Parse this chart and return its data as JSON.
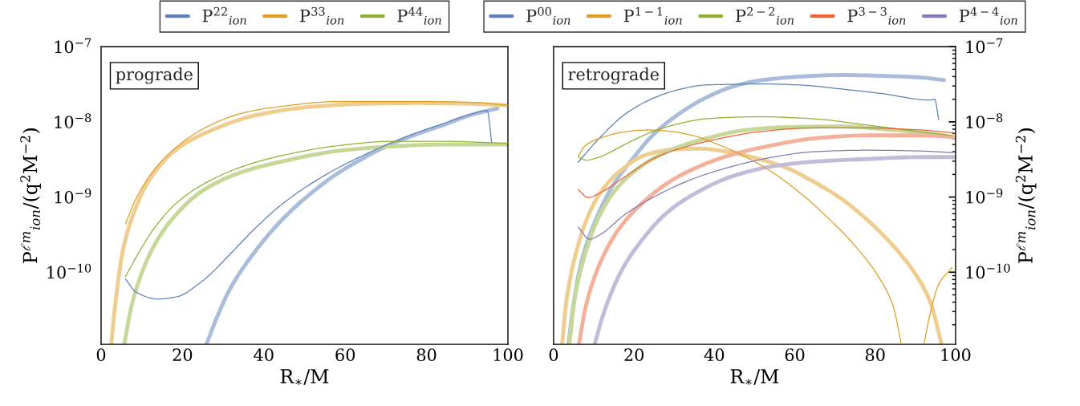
{
  "chart_data": [
    {
      "type": "line",
      "xlabel": "R$_{∗}$/M",
      "ylabel": "P$^{ℓm}$$_{ion}$/(q$^{2}$M$^{−2}$)",
      "log": "y",
      "legend": "top",
      "annotations": [
        "prograde"
      ],
      "xlim": [
        0,
        100
      ],
      "xticks": [
        0,
        20,
        40,
        60,
        80,
        100
      ],
      "ylim": [
        1.1e-11,
        1e-07
      ],
      "yticks": [
        {
          "value": 1e-10,
          "label": "10$^{−10}$"
        },
        {
          "value": 1e-09,
          "label": "10$^{−9}$"
        },
        {
          "value": 1e-08,
          "label": "10$^{−8}$"
        },
        {
          "value": 1e-07,
          "label": "10$^{−7}$"
        }
      ],
      "series": [
        {
          "name": "P$^{22}$$_{ion}$",
          "color": "#5e81b5",
          "x": [
            6,
            8.7,
            13.9,
            18.5,
            25.1,
            31.7,
            38.2,
            44.8,
            51.4,
            58,
            64.5,
            71.1,
            77.7,
            84.2,
            90.8,
            94.9,
            96
          ],
          "values": [
            8.1e-11,
            5.4e-11,
            4.4e-11,
            4.7e-11,
            7.8e-11,
            1.74e-10,
            4e-10,
            8.3e-10,
            1.48e-09,
            2.4e-09,
            3.6e-09,
            5.2e-09,
            7.2e-09,
            9.5e-09,
            1.26e-08,
            1.41e-08,
            5.4e-09
          ]
        },
        {
          "name": "P$^{33}$$_{ion}$",
          "color": "#e19c24",
          "x": [
            6,
            8.7,
            13.3,
            18.5,
            25.1,
            35,
            44.8,
            58,
            77.7,
            91,
            100
          ],
          "values": [
            4.4e-10,
            9.8e-10,
            2.4e-09,
            4.6e-09,
            8.1e-09,
            1.32e-08,
            1.62e-08,
            1.86e-08,
            1.86e-08,
            1.82e-08,
            1.66e-08
          ]
        },
        {
          "name": "P$^{44}$$_{ion}$",
          "color": "#8fb032",
          "x": [
            6,
            8.7,
            13.3,
            18.5,
            25.1,
            35,
            44.8,
            58,
            71.1,
            84.2,
            100
          ],
          "values": [
            8.7e-11,
            1.62e-10,
            4e-10,
            8.3e-10,
            1.48e-09,
            2.57e-09,
            3.6e-09,
            4.8e-09,
            5.5e-09,
            5.5e-09,
            5.2e-09
          ]
        },
        {
          "color": "#a9bdda",
          "x": [
            25.9,
            28.4,
            31.7,
            38.2,
            44.8,
            51.4,
            58,
            64.5,
            71.1,
            77.7,
            84.2,
            90.8,
            97.4
          ],
          "values": [
            1.1e-11,
            2.45e-11,
            6e-11,
            2e-10,
            5.2e-10,
            1.1e-09,
            2.04e-09,
            3.3e-09,
            5e-09,
            6.9e-09,
            9.1e-09,
            1.23e-08,
            1.51e-08
          ]
        },
        {
          "color": "#efcd8f",
          "x": [
            2.5,
            3.4,
            5.4,
            8.7,
            12,
            18.5,
            25.1,
            38.2,
            51.4,
            64.5,
            77.7,
            90.8,
            100
          ],
          "values": [
            1.1e-11,
            3.4e-11,
            2e-10,
            7.6e-10,
            1.74e-09,
            4.3e-09,
            6.9e-09,
            1.23e-08,
            1.58e-08,
            1.74e-08,
            1.78e-08,
            1.74e-08,
            1.66e-08
          ]
        },
        {
          "color": "#c6d898",
          "x": [
            5.7,
            7.4,
            10,
            13.3,
            18.5,
            25.1,
            35,
            44.8,
            58,
            71.1,
            84.2,
            100
          ],
          "values": [
            1.1e-11,
            3.4e-11,
            9.8e-11,
            2.4e-10,
            5.9e-10,
            1.23e-09,
            2.19e-09,
            3e-09,
            4.1e-09,
            4.7e-09,
            5e-09,
            5e-09
          ]
        }
      ]
    },
    {
      "type": "line",
      "xlabel": "R$_{∗}$/M",
      "y2label": "P$^{ℓm}$$_{ion}$/(q$^{2}$M$^{−2}$)",
      "log": "y2",
      "legend": "top",
      "annotations": [
        "retrograde"
      ],
      "xlim": [
        0,
        100
      ],
      "xticks": [
        0,
        20,
        40,
        60,
        80,
        100
      ],
      "y2lim": [
        1.1e-11,
        1e-07
      ],
      "y2ticks": [
        {
          "value": 1e-10,
          "label": "10$^{−10}$"
        },
        {
          "value": 1e-09,
          "label": "10$^{−9}$"
        },
        {
          "value": 1e-08,
          "label": "10$^{−8}$"
        },
        {
          "value": 1e-07,
          "label": "10$^{−7}$"
        }
      ],
      "series": [
        {
          "name": "P$^{00}$$_{ion}$",
          "color": "#5e81b5",
          "axis": "y2",
          "x": [
            6.1,
            11.3,
            18,
            24.6,
            31.3,
            37.9,
            44.6,
            51.2,
            61.2,
            71.2,
            81.2,
            93.8,
            94.8,
            95.8
          ],
          "values": [
            2.9e-09,
            6e-09,
            1.29e-08,
            2.04e-08,
            2.7e-08,
            3.1e-08,
            3.16e-08,
            3.2e-08,
            3.1e-08,
            2.75e-08,
            2.4e-08,
            1.95e-08,
            2e-08,
            1.07e-08
          ]
        },
        {
          "name": "P$^{1−1}$$_{ion}$",
          "color": "#e19c24",
          "axis": "y2",
          "x": [
            6.1,
            8,
            11.3,
            18,
            23.3,
            27.9,
            34.6,
            41.3,
            47.9,
            54.6,
            61.2,
            67.9,
            74.5,
            81.2,
            84.5,
            86.5,
            89,
            92.1,
            93.8,
            95.8,
            99.1
          ],
          "values": [
            3.5e-09,
            4.9e-09,
            6e-09,
            7.4e-09,
            7.8e-09,
            7.6e-09,
            6.6e-09,
            4.9e-09,
            3.4e-09,
            2.1e-09,
            1.15e-09,
            5.5e-10,
            2.4e-10,
            8.1e-11,
            3.5e-11,
            1.1e-11,
            null,
            1.1e-11,
            3e-11,
            6.9e-11,
            1.15e-10
          ]
        },
        {
          "name": "P$^{2−2}$$_{ion}$",
          "color": "#8fb032",
          "axis": "y2",
          "x": [
            6.1,
            8.3,
            11.3,
            18,
            24.6,
            31.3,
            37.9,
            51.2,
            64.5,
            77.8,
            91.1,
            99.1
          ],
          "values": [
            3.4e-09,
            3.1e-09,
            3.4e-09,
            5.1e-09,
            7.4e-09,
            9.5e-09,
            1.1e-08,
            1.17e-08,
            1.1e-08,
            9.1e-09,
            7.4e-09,
            6.6e-09
          ]
        },
        {
          "name": "P$^{3−3}$$_{ion}$",
          "color": "#eb6235",
          "axis": "y2",
          "x": [
            6.1,
            8.6,
            11.3,
            18,
            24.6,
            31.3,
            41.3,
            51.2,
            64.5,
            77.8,
            91.1,
            99.8
          ],
          "values": [
            1.26e-09,
            9.8e-10,
            1.12e-09,
            1.9e-09,
            3.2e-09,
            4.4e-09,
            6e-09,
            7.4e-09,
            8.3e-09,
            8.3e-09,
            7.8e-09,
            7.1e-09
          ]
        },
        {
          "name": "P$^{4−4}$$_{ion}$",
          "color": "#8778b3",
          "axis": "y2",
          "x": [
            6.1,
            9,
            11.3,
            18,
            24.6,
            34.6,
            44.6,
            54.6,
            64.5,
            77.8,
            91.1,
            99.1
          ],
          "values": [
            4e-10,
            2.75e-10,
            3.1e-10,
            6e-10,
            9.8e-10,
            1.74e-09,
            2.57e-09,
            3.4e-09,
            4e-09,
            4.2e-09,
            4.1e-09,
            3.9e-09
          ]
        },
        {
          "color": "#a9bdda",
          "axis": "y2",
          "x": [
            3.7,
            4.7,
            6.7,
            10,
            14.6,
            20,
            24.6,
            31.3,
            37.9,
            44.6,
            51.2,
            61.2,
            71.2,
            81.2,
            91.2,
            97.1
          ],
          "values": [
            1.1e-11,
            3e-11,
            1.23e-10,
            4.3e-10,
            1.38e-09,
            3.4e-09,
            6.6e-09,
            1.29e-08,
            2.1e-08,
            2.95e-08,
            3.55e-08,
            4e-08,
            4.2e-08,
            4.1e-08,
            3.9e-08,
            3.6e-08
          ]
        },
        {
          "color": "#efcd8f",
          "axis": "y2",
          "x": [
            2.1,
            3.3,
            5.3,
            8,
            11.3,
            16.6,
            23.3,
            29.9,
            36.6,
            43.2,
            51.2,
            57.9,
            64.5,
            71.2,
            77.8,
            84.5,
            89.8,
            93.8,
            96.5
          ],
          "values": [
            1.1e-11,
            4.6e-11,
            1.58e-10,
            4.7e-10,
            1.07e-09,
            2.24e-09,
            3.7e-09,
            4.3e-09,
            4.4e-09,
            4e-09,
            3.2e-09,
            2.45e-09,
            1.62e-09,
            9.8e-10,
            5.1e-10,
            2.24e-10,
            9.8e-11,
            3.9e-11,
            1.1e-11
          ]
        },
        {
          "color": "#c6d898",
          "axis": "y2",
          "x": [
            3.9,
            5.3,
            8,
            11.3,
            16.6,
            23.3,
            29.9,
            37.9,
            47.9,
            57.9,
            71.2,
            84.5,
            97.1
          ],
          "values": [
            1.1e-11,
            4.6e-11,
            1.86e-10,
            5.5e-10,
            1.48e-09,
            2.9e-09,
            4.4e-09,
            6e-09,
            7.8e-09,
            8.5e-09,
            8.7e-09,
            7.8e-09,
            6.6e-09
          ]
        },
        {
          "color": "#f3b09a",
          "axis": "y2",
          "x": [
            6.3,
            8,
            11.3,
            16,
            21.3,
            27.9,
            34.6,
            44.6,
            54.6,
            64.5,
            77.8,
            91.1,
            99.8
          ],
          "values": [
            1.1e-11,
            3.5e-11,
            1.23e-10,
            3.6e-10,
            7.6e-10,
            1.48e-09,
            2.34e-09,
            3.7e-09,
            4.9e-09,
            6e-09,
            6.6e-09,
            6.6e-09,
            6.3e-09
          ]
        },
        {
          "color": "#c3bbd9",
          "axis": "y2",
          "x": [
            10.2,
            12.6,
            16.6,
            21.3,
            27.9,
            34.6,
            44.6,
            54.6,
            64.5,
            77.8,
            91.1,
            99.8
          ],
          "values": [
            1.1e-11,
            3e-11,
            9.8e-11,
            2.4e-10,
            6e-10,
            1.07e-09,
            1.9e-09,
            2.57e-09,
            2.95e-09,
            3.2e-09,
            3.4e-09,
            3.4e-09
          ]
        }
      ]
    }
  ]
}
